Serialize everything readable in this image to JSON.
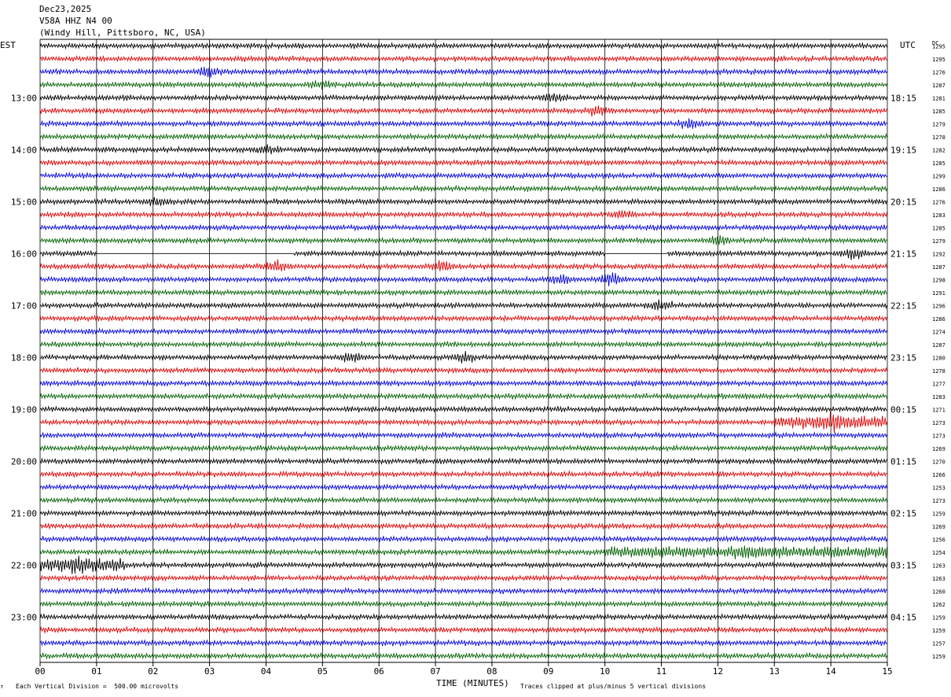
{
  "header": {
    "date": "Dec23,2025",
    "channel": "V58A HHZ N4 00",
    "station": "(Windy Hill, Pittsboro, NC, USA)"
  },
  "left_zone": "EST",
  "right_zone": "UTC",
  "dc_label": "DC",
  "footer": {
    "scale": "Each Vertical Division =  500.00 microvolts",
    "xlabel": "TIME (MINUTES)",
    "clip_note": "Traces clipped at plus/minus 5 vertical divisions",
    "corner_mark": "↑"
  },
  "colors": {
    "trace_cycle": [
      "#000000",
      "#e00000",
      "#0000e0",
      "#006000"
    ],
    "grid": "#000000"
  },
  "chart_data": {
    "type": "line",
    "title": "",
    "xlabel": "TIME (MINUTES)",
    "ylabel": "",
    "xlim": [
      0,
      15
    ],
    "x_ticks": [
      "00",
      "01",
      "02",
      "03",
      "04",
      "05",
      "06",
      "07",
      "08",
      "09",
      "10",
      "11",
      "12",
      "13",
      "14",
      "15"
    ],
    "grid": true,
    "row_minutes": 15,
    "left_hour_labels": [
      "13:00",
      "14:00",
      "15:00",
      "16:00",
      "17:00",
      "18:00",
      "19:00",
      "20:00",
      "21:00",
      "22:00",
      "23:00"
    ],
    "right_hour_labels": [
      "18:15",
      "19:15",
      "20:15",
      "21:15",
      "22:15",
      "23:15",
      "00:15",
      "01:15",
      "02:15",
      "03:15",
      "04:15"
    ],
    "dc_offsets": [
      1295,
      1295,
      1276,
      1287,
      1281,
      1285,
      1279,
      1278,
      1282,
      1285,
      1299,
      1286,
      1276,
      1283,
      1285,
      1279,
      1292,
      1287,
      1298,
      1291,
      1296,
      1286,
      1274,
      1287,
      1280,
      1278,
      1277,
      1283,
      1271,
      1273,
      1273,
      1269,
      1270,
      1266,
      1253,
      1273,
      1259,
      1269,
      1256,
      1254,
      1263,
      1263,
      1260,
      1262,
      1259,
      1259,
      1257,
      1259
    ],
    "events": [
      {
        "row": 2,
        "minute": 3.0,
        "amp": 1.8
      },
      {
        "row": 3,
        "minute": 5.0,
        "amp": 1.3
      },
      {
        "row": 4,
        "minute": 9.1,
        "amp": 1.4
      },
      {
        "row": 5,
        "minute": 9.9,
        "amp": 1.5
      },
      {
        "row": 6,
        "minute": 11.5,
        "amp": 1.4
      },
      {
        "row": 8,
        "minute": 4.0,
        "amp": 1.3
      },
      {
        "row": 12,
        "minute": 2.1,
        "amp": 1.2
      },
      {
        "row": 13,
        "minute": 10.3,
        "amp": 1.2
      },
      {
        "row": 15,
        "minute": 12.0,
        "amp": 1.5
      },
      {
        "row": 16,
        "minute": 14.4,
        "amp": 1.8
      },
      {
        "row": 17,
        "minute": 7.1,
        "amp": 2.0
      },
      {
        "row": 17,
        "minute": 4.2,
        "amp": 1.6
      },
      {
        "row": 18,
        "minute": 10.1,
        "amp": 2.0
      },
      {
        "row": 18,
        "minute": 9.2,
        "amp": 1.5
      },
      {
        "row": 20,
        "minute": 11.0,
        "amp": 1.4
      },
      {
        "row": 24,
        "minute": 5.5,
        "amp": 1.4
      },
      {
        "row": 24,
        "minute": 7.5,
        "amp": 1.4
      },
      {
        "row": 29,
        "minute": 14.0,
        "amp": 1.6
      },
      {
        "row": 39,
        "minute": 12.5,
        "amp": 1.4
      },
      {
        "row": 40,
        "minute": 0.7,
        "amp": 1.7
      }
    ],
    "gaps": [
      {
        "row": 16,
        "from": 1.0,
        "to": 4.5
      },
      {
        "row": 16,
        "from": 10.0,
        "to": 11.1
      }
    ],
    "noisy_segments": [
      {
        "row": 29,
        "from": 13.0,
        "to": 15.0,
        "amp": 1.6
      },
      {
        "row": 39,
        "from": 10.0,
        "to": 15.0,
        "amp": 1.3
      },
      {
        "row": 40,
        "from": 0.0,
        "to": 1.5,
        "amp": 1.6
      }
    ]
  }
}
